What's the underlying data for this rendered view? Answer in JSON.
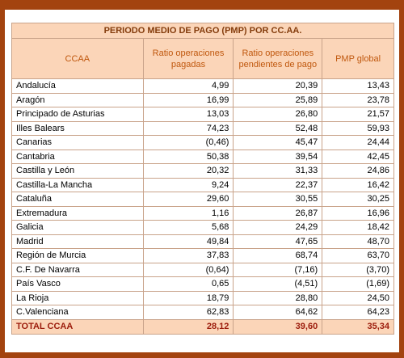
{
  "table": {
    "title": "PERIODO MEDIO DE PAGO (PMP) POR CC.AA.",
    "headers": [
      "CCAA",
      "Ratio operaciones pagadas",
      "Ratio operaciones pendientes de pago",
      "PMP global"
    ],
    "rows": [
      [
        "Andalucía",
        "4,99",
        "20,39",
        "13,43"
      ],
      [
        "Aragón",
        "16,99",
        "25,89",
        "23,78"
      ],
      [
        "Principado de Asturias",
        "13,03",
        "26,80",
        "21,57"
      ],
      [
        "Illes Balears",
        "74,23",
        "52,48",
        "59,93"
      ],
      [
        "Canarias",
        "(0,46)",
        "45,47",
        "24,44"
      ],
      [
        "Cantabria",
        "50,38",
        "39,54",
        "42,45"
      ],
      [
        "Castilla y León",
        "20,32",
        "31,33",
        "24,86"
      ],
      [
        "Castilla-La Mancha",
        "9,24",
        "22,37",
        "16,42"
      ],
      [
        "Cataluña",
        "29,60",
        "30,55",
        "30,25"
      ],
      [
        "Extremadura",
        "1,16",
        "26,87",
        "16,96"
      ],
      [
        "Galicia",
        "5,68",
        "24,29",
        "18,42"
      ],
      [
        "Madrid",
        "49,84",
        "47,65",
        "48,70"
      ],
      [
        "Región de Murcia",
        "37,83",
        "68,74",
        "63,70"
      ],
      [
        "C.F. De Navarra",
        "(0,64)",
        "(7,16)",
        "(3,70)"
      ],
      [
        "País Vasco",
        "0,65",
        "(4,51)",
        "(1,69)"
      ],
      [
        "La Rioja",
        "18,79",
        "28,80",
        "24,50"
      ],
      [
        "C.Valenciana",
        "62,83",
        "64,62",
        "64,23"
      ]
    ],
    "total": [
      "TOTAL CCAA",
      "28,12",
      "39,60",
      "35,34"
    ]
  }
}
